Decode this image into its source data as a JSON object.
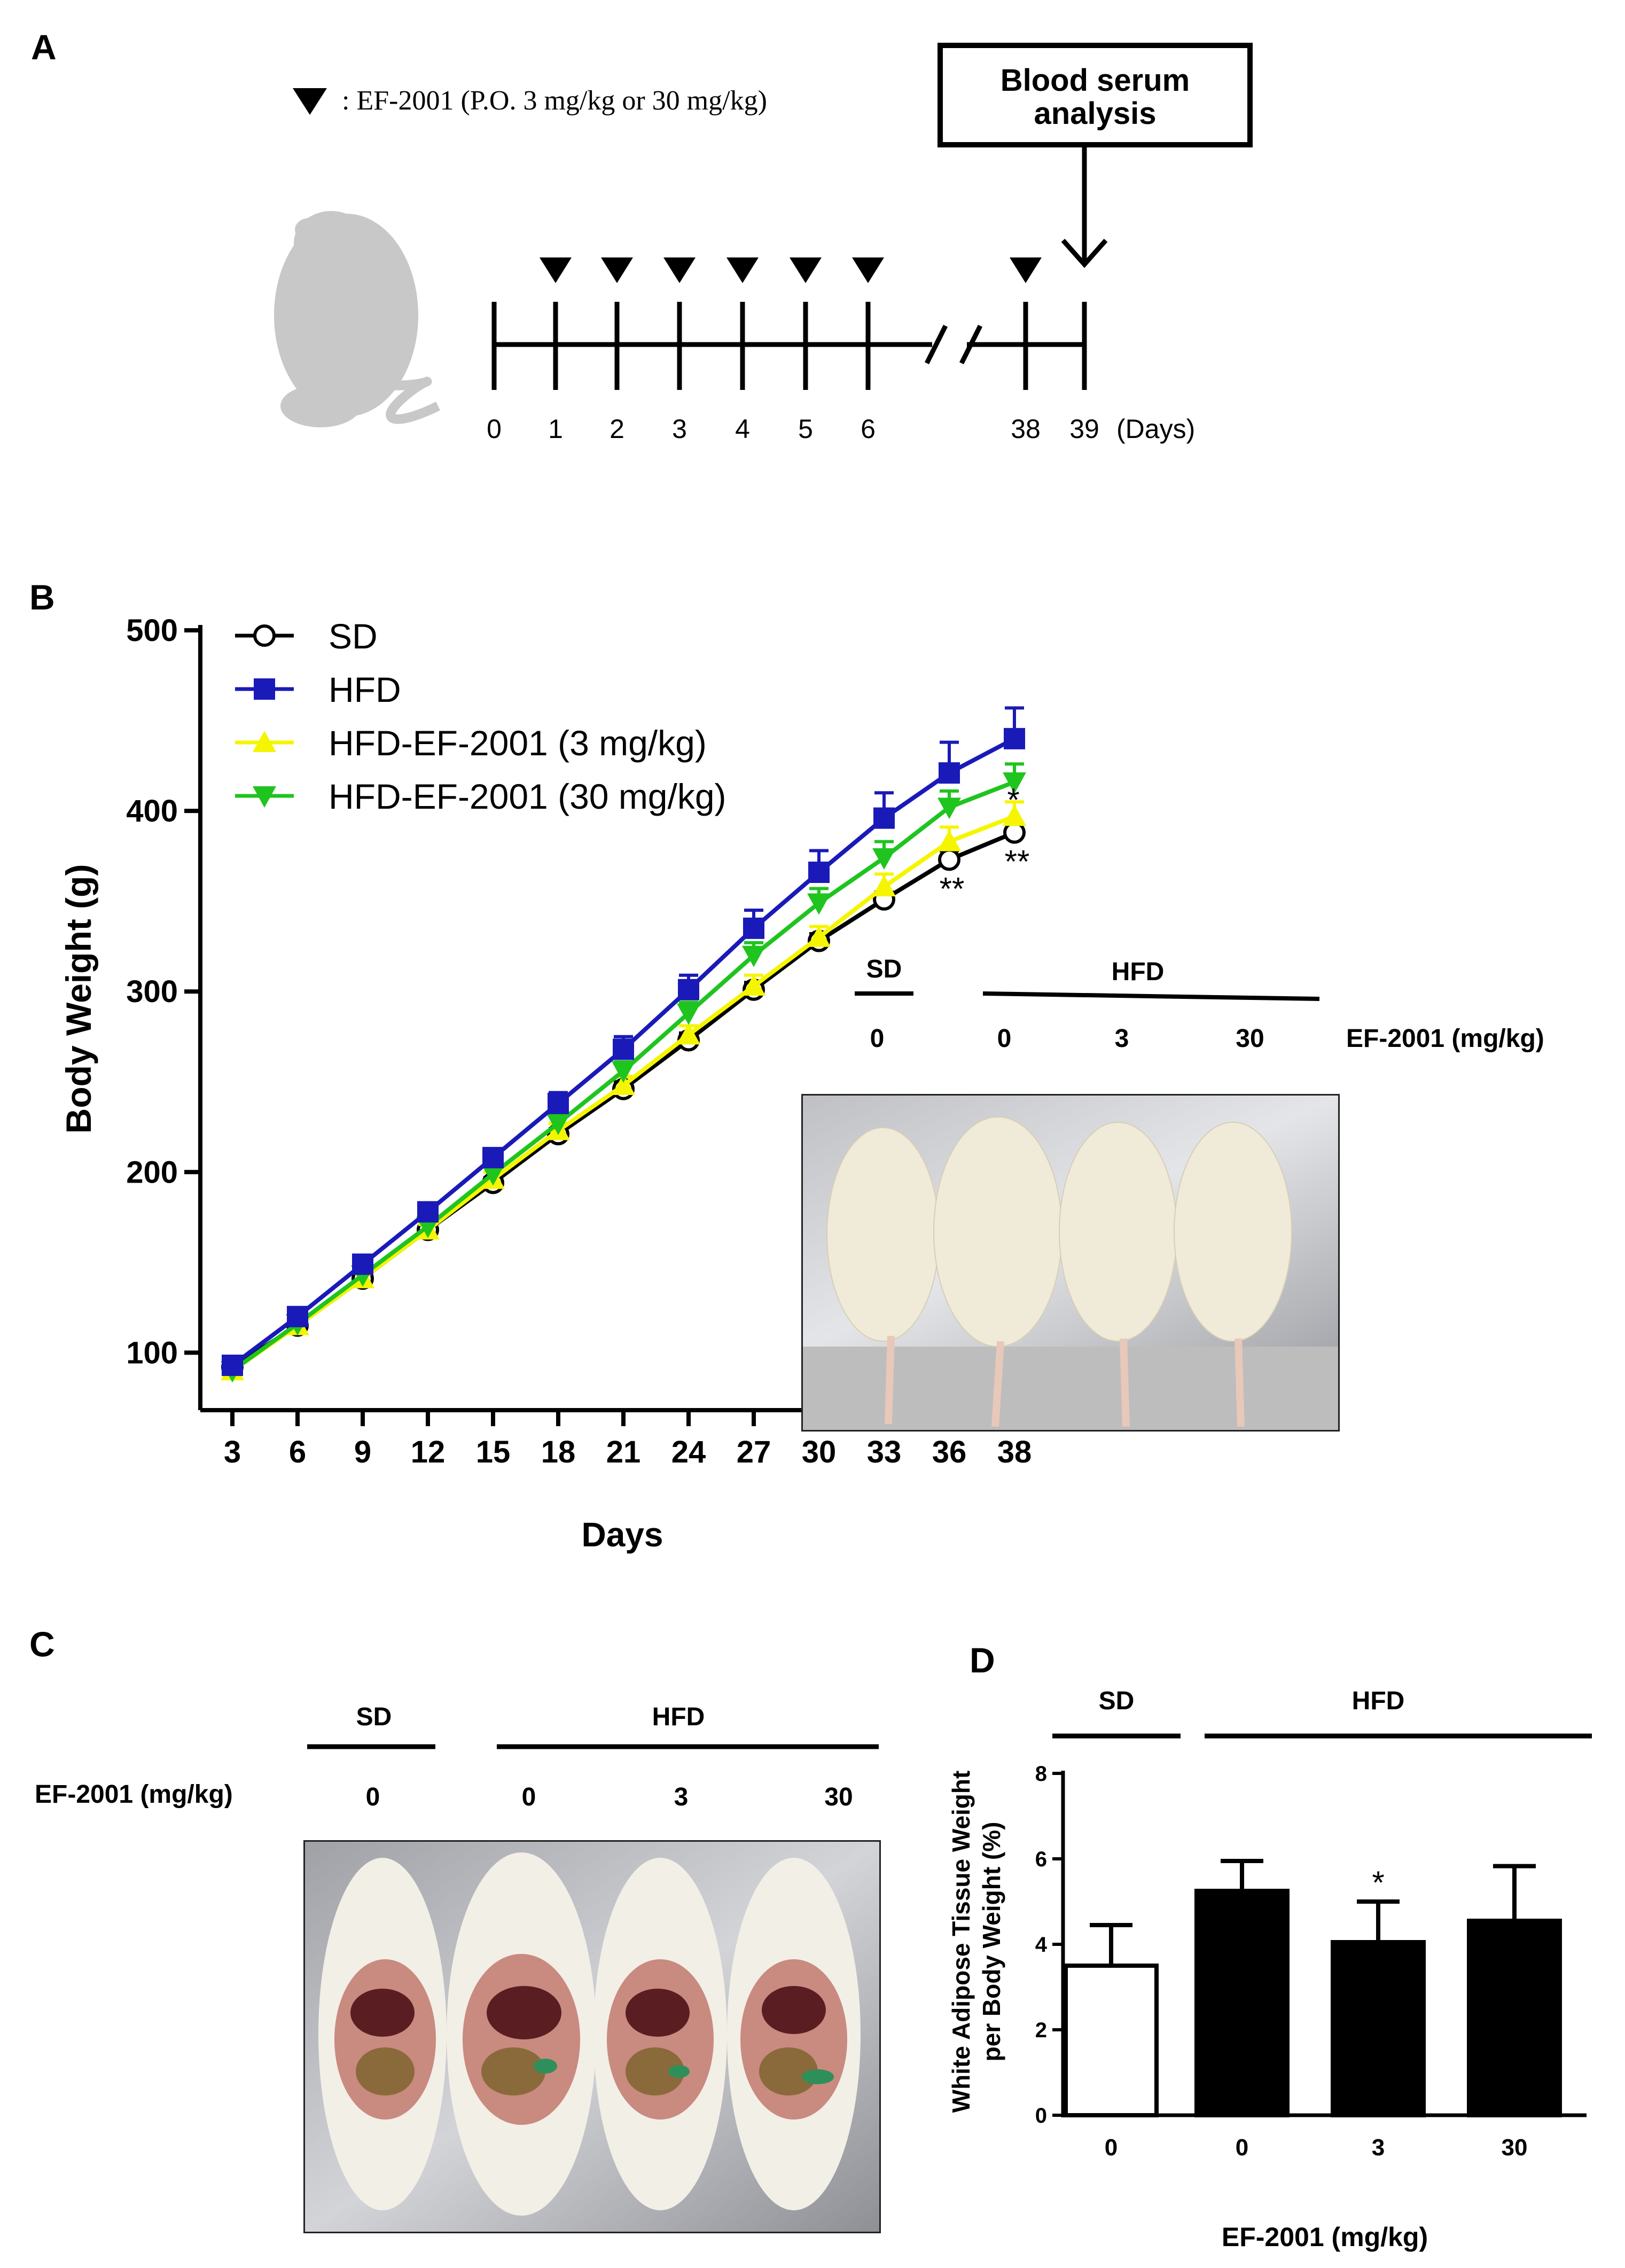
{
  "panels": {
    "a": "A",
    "b": "B",
    "c": "C",
    "d": "D"
  },
  "panel_a": {
    "legend_text": ": EF-2001 (P.O. 3 mg/kg or 30 mg/kg)",
    "box_line1": "Blood serum",
    "box_line2": "analysis",
    "timeline_days": [
      "0",
      "1",
      "2",
      "3",
      "4",
      "5",
      "6",
      "38",
      "39"
    ],
    "days_unit": "(Days)",
    "dose_markers": [
      "1",
      "2",
      "3",
      "4",
      "5",
      "6",
      "38"
    ]
  },
  "panel_b_photo": {
    "sd_label": "SD",
    "hfd_label": "HFD",
    "doses": [
      "0",
      "0",
      "3",
      "30"
    ],
    "dose_label": "EF-2001 (mg/kg)"
  },
  "panel_c": {
    "sd_label": "SD",
    "hfd_label": "HFD",
    "dose_label": "EF-2001 (mg/kg)",
    "doses": [
      "0",
      "0",
      "3",
      "30"
    ]
  },
  "panel_d": {
    "sd_label": "SD",
    "hfd_label": "HFD"
  },
  "colors": {
    "sd": "#000000",
    "hfd": "#1a1ab8",
    "ef3": "#f5f500",
    "ef30": "#1fc41f"
  },
  "chart_data": [
    {
      "type": "line",
      "xlabel": "Days",
      "ylabel": "Body Weight (g)",
      "x": [
        3,
        6,
        9,
        12,
        15,
        18,
        21,
        24,
        27,
        30,
        33,
        36,
        38
      ],
      "xticks": [
        "3",
        "6",
        "9",
        "12",
        "15",
        "18",
        "21",
        "24",
        "27",
        "30",
        "33",
        "36",
        "38"
      ],
      "ylim": [
        100,
        500
      ],
      "yticks": [
        100,
        200,
        300,
        400,
        500
      ],
      "legend_position": "top-left",
      "series": [
        {
          "name": "SD",
          "marker": "open-circle",
          "values": [
            92,
            115,
            141,
            168,
            194,
            221,
            246,
            273,
            301,
            328,
            351,
            373,
            388
          ],
          "errors": [
            2,
            2,
            3,
            3,
            3,
            3,
            4,
            4,
            4,
            4,
            4,
            5,
            5
          ]
        },
        {
          "name": "HFD",
          "marker": "square",
          "values": [
            93,
            120,
            149,
            178,
            208,
            238,
            268,
            301,
            335,
            366,
            396,
            421,
            440
          ],
          "errors": [
            2,
            3,
            3,
            4,
            5,
            6,
            7,
            8,
            10,
            12,
            14,
            17,
            17
          ]
        },
        {
          "name": "HFD-EF-2001 (3 mg/kg)",
          "marker": "triangle-up",
          "values": [
            90,
            115,
            141,
            168,
            196,
            223,
            248,
            276,
            303,
            330,
            358,
            383,
            397
          ],
          "errors": [
            2,
            2,
            3,
            3,
            4,
            4,
            5,
            5,
            6,
            6,
            7,
            8,
            8
          ]
        },
        {
          "name": "HFD-EF-2001 (30 mg/kg)",
          "marker": "triangle-down",
          "values": [
            90,
            116,
            143,
            170,
            199,
            227,
            256,
            288,
            320,
            349,
            374,
            402,
            416
          ],
          "errors": [
            2,
            2,
            3,
            3,
            4,
            5,
            5,
            6,
            7,
            8,
            9,
            9,
            10
          ]
        }
      ],
      "annotations": [
        {
          "x": 36,
          "text": "**",
          "series": "SD"
        },
        {
          "x": 38,
          "text": "*",
          "series": "HFD-EF-2001 (3 mg/kg)"
        },
        {
          "x": 38,
          "text": "**",
          "series": "SD"
        }
      ]
    },
    {
      "type": "bar",
      "xlabel": "EF-2001 (mg/kg)",
      "ylabel": "White Adipose Tissue Weight per Body Weight (%)",
      "ylabel_line1": "White Adipose Tissue Weight",
      "ylabel_line2": "per Body Weight (%)",
      "categories": [
        "0",
        "0",
        "3",
        "30"
      ],
      "values": [
        3.5,
        5.25,
        4.05,
        4.55
      ],
      "errors": [
        0.95,
        0.7,
        0.95,
        1.28
      ],
      "fills": [
        "#ffffff",
        "#000000",
        "#000000",
        "#000000"
      ],
      "ylim": [
        0,
        8
      ],
      "yticks": [
        0,
        2,
        4,
        6,
        8
      ],
      "annotations": [
        {
          "index": 2,
          "text": "*"
        }
      ]
    }
  ]
}
